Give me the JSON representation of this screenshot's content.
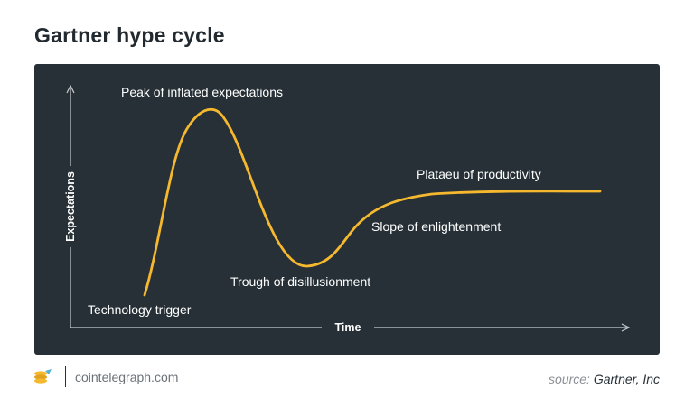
{
  "title": "Gartner hype cycle",
  "diagram": {
    "y_axis_label": "Expectations",
    "x_axis_label": "Time",
    "curve_color": "#f5b82e",
    "background_color": "#263036",
    "stages": [
      {
        "label": "Technology trigger"
      },
      {
        "label": "Peak of inflated expectations"
      },
      {
        "label": "Trough of disillusionment"
      },
      {
        "label": "Slope of enlightenment"
      },
      {
        "label": "Plataeu of productivity"
      }
    ]
  },
  "footer": {
    "logo_icon": "cointelegraph-logo-icon",
    "site": "cointelegraph.com",
    "source_prefix": "source:",
    "source_name": "Gartner, Inc"
  }
}
